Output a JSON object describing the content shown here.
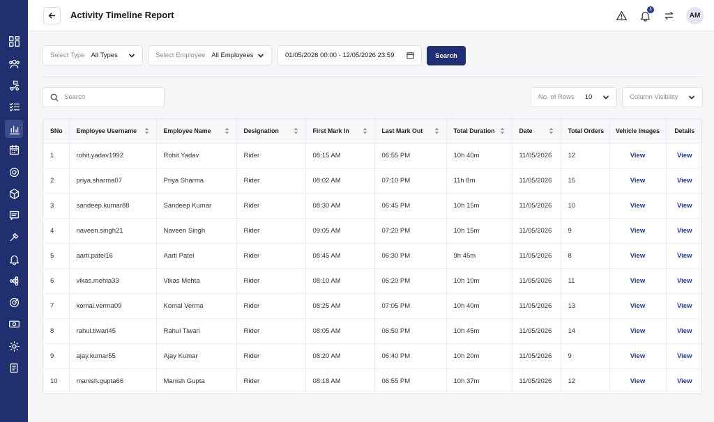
{
  "header": {
    "title": "Activity Timeline Report",
    "notification_count": "3",
    "avatar_initials": "AM"
  },
  "filters": {
    "type_label": "Select Type",
    "type_value": "All Types",
    "employee_label": "Select Employee",
    "employee_value": "All Employees",
    "date_range": "01/05/2026 00:00 - 12/05/2026 23:59",
    "search_button": "Search"
  },
  "toolbar": {
    "search_placeholder": "Search",
    "rows_label": "No. of Rows",
    "rows_value": "10",
    "column_visibility": "Column Visibility"
  },
  "table": {
    "columns": [
      "SNo",
      "Employee Username",
      "Employee Name",
      "Designation",
      "First Mark In",
      "Last Mark Out",
      "Total Duration",
      "Date",
      "Total Orders",
      "Vehicle Images",
      "Details"
    ],
    "rows": [
      [
        "1",
        "rohit.yadav1992",
        "Rohit Yadav",
        "Rider",
        "08:15 AM",
        "06:55 PM",
        "10h 40m",
        "11/05/2026",
        "12",
        "View",
        "View"
      ],
      [
        "2",
        "priya.sharma07",
        "Priya Sharma",
        "Rider",
        "08:02 AM",
        "07:10 PM",
        "11h 8m",
        "11/05/2026",
        "15",
        "View",
        "View"
      ],
      [
        "3",
        "sandeep.kumar88",
        "Sandeep Kumar",
        "Rider",
        "08:30 AM",
        "06:45 PM",
        "10h 15m",
        "11/05/2026",
        "10",
        "View",
        "View"
      ],
      [
        "4",
        "naveen.singh21",
        "Naveen Singh",
        "Rider",
        "09:05 AM",
        "07:20 PM",
        "10h 15m",
        "11/05/2026",
        "9",
        "View",
        "View"
      ],
      [
        "5",
        "aarti.patel16",
        "Aarti Patel",
        "Rider",
        "08:45 AM",
        "06:30 PM",
        "9h 45m",
        "11/05/2026",
        "8",
        "View",
        "View"
      ],
      [
        "6",
        "vikas.mehta33",
        "Vikas Mehta",
        "Rider",
        "08:10 AM",
        "06:20 PM",
        "10h 10m",
        "11/05/2026",
        "11",
        "View",
        "View"
      ],
      [
        "7",
        "komal.verma09",
        "Komal Verma",
        "Rider",
        "08:25 AM",
        "07:05 PM",
        "10h 40m",
        "11/05/2026",
        "13",
        "View",
        "View"
      ],
      [
        "8",
        "rahul.tiwari45",
        "Rahul Tiwari",
        "Rider",
        "08:05 AM",
        "06:50 PM",
        "10h 45m",
        "11/05/2026",
        "14",
        "View",
        "View"
      ],
      [
        "9",
        "ajay.kumar55",
        "Ajay Kumar",
        "Rider",
        "08:20 AM",
        "06:40 PM",
        "10h 20m",
        "11/05/2026",
        "9",
        "View",
        "View"
      ],
      [
        "10",
        "manish.gupta66",
        "Manish Gupta",
        "Rider",
        "08:18 AM",
        "06:55 PM",
        "10h 37m",
        "11/05/2026",
        "12",
        "View",
        "View"
      ]
    ]
  },
  "sidebar": {
    "icons": [
      "dashboard-icon",
      "users-icon",
      "delivery-icon",
      "tasks-icon",
      "reports-icon",
      "calendar-icon",
      "target-icon",
      "package-icon",
      "messages-icon",
      "tools-icon",
      "bell-icon",
      "network-icon",
      "support-icon",
      "cash-icon",
      "settings-icon",
      "documents-icon"
    ],
    "active": "reports-icon"
  },
  "colors": {
    "sidebar_bg": "#1f2f6f",
    "accent": "#1f3a93",
    "link": "#1f3a93"
  }
}
